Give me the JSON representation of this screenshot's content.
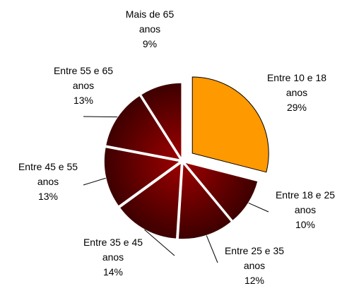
{
  "chart_data": {
    "type": "pie",
    "categories": [
      "Entre 10 e 18 anos",
      "Entre 18 e 25 anos",
      "Entre 25 e 35 anos",
      "Entre 35 e 45 anos",
      "Entre 45 e 55 anos",
      "Entre 55 e 65 anos",
      "Mais de 65 anos"
    ],
    "values": [
      29,
      10,
      12,
      14,
      13,
      13,
      9
    ],
    "value_labels": [
      "29%",
      "10%",
      "12%",
      "14%",
      "13%",
      "13%",
      "9%"
    ],
    "colors": [
      "#ff9900",
      "#800000",
      "#800000",
      "#800000",
      "#800000",
      "#800000",
      "#800000"
    ]
  }
}
